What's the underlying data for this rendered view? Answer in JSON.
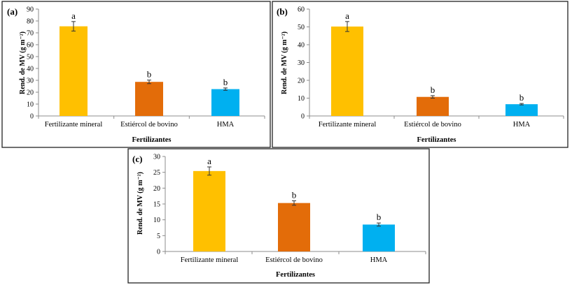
{
  "chart_data": [
    {
      "type": "bar",
      "panel": "(a)",
      "categories": [
        "Fertilizante mineral",
        "Estiércol de bovino",
        "HMA"
      ],
      "values": [
        75.5,
        28.7,
        22.6
      ],
      "errors": [
        4.0,
        1.5,
        1.0
      ],
      "significance": [
        "a",
        "b",
        "b"
      ],
      "colors": [
        "#FFC000",
        "#E36C09",
        "#00B0F0"
      ],
      "xlabel": "Fertilizantes",
      "ylabel": "Rend. de MV (g m⁻²)",
      "ylim": [
        0,
        90
      ],
      "yticks": [
        0,
        10,
        20,
        30,
        40,
        50,
        60,
        70,
        80,
        90
      ]
    },
    {
      "type": "bar",
      "panel": "(b)",
      "categories": [
        "Fertilizante mineral",
        "Estiércol de bovino",
        "HMA"
      ],
      "values": [
        50.2,
        10.7,
        6.6
      ],
      "errors": [
        2.8,
        0.7,
        0.4
      ],
      "significance": [
        "a",
        "b",
        "b"
      ],
      "colors": [
        "#FFC000",
        "#E36C09",
        "#00B0F0"
      ],
      "xlabel": "Fertilizantes",
      "ylabel": "Rend. de MV (g m⁻²)",
      "ylim": [
        0,
        60
      ],
      "yticks": [
        0,
        10,
        20,
        30,
        40,
        50,
        60
      ]
    },
    {
      "type": "bar",
      "panel": "(c)",
      "categories": [
        "Fertilizante mineral",
        "Estiércol de bovino",
        "HMA"
      ],
      "values": [
        25.4,
        15.3,
        8.5
      ],
      "errors": [
        1.3,
        0.7,
        0.5
      ],
      "significance": [
        "a",
        "b",
        "b"
      ],
      "colors": [
        "#FFC000",
        "#E36C09",
        "#00B0F0"
      ],
      "xlabel": "Fertilizantes",
      "ylabel": "Rend. de MV (g m⁻²)",
      "ylim": [
        0,
        30
      ],
      "yticks": [
        0,
        5,
        10,
        15,
        20,
        25,
        30
      ]
    }
  ]
}
